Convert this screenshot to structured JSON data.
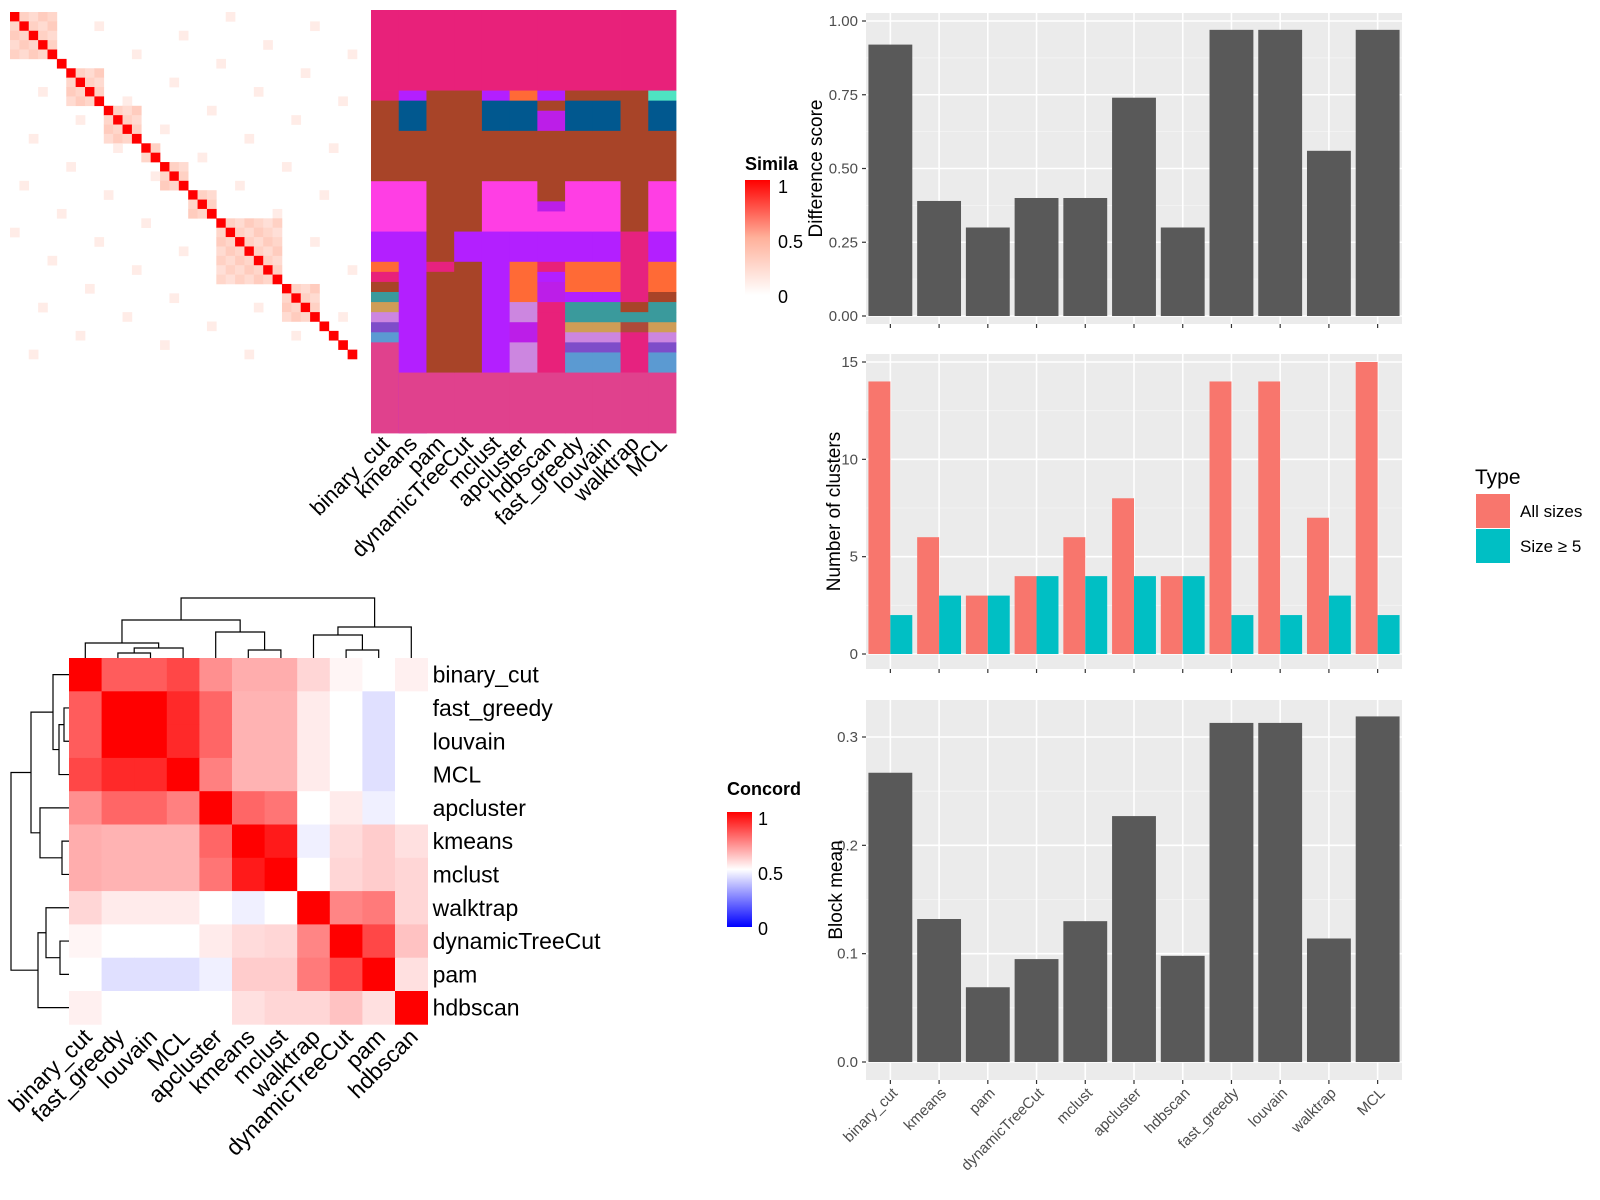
{
  "methods": [
    "binary_cut",
    "kmeans",
    "pam",
    "dynamicTreeCut",
    "mclust",
    "apcluster",
    "hdbscan",
    "fast_greedy",
    "louvain",
    "walktrap",
    "MCL"
  ],
  "legends": {
    "similarity": {
      "title": "Simila",
      "ticks": [
        "1",
        "0.5",
        "0"
      ]
    },
    "concordance": {
      "title": "Concord",
      "ticks": [
        "1",
        "0.5",
        "0"
      ]
    }
  },
  "chart_data": [
    {
      "id": "similarity_heatmap",
      "type": "heatmap",
      "n": 37,
      "diagonal": 1,
      "blocks": [
        [
          0,
          5
        ],
        [
          5,
          6
        ],
        [
          6,
          10
        ],
        [
          10,
          14
        ],
        [
          14,
          16
        ],
        [
          16,
          19
        ],
        [
          19,
          22
        ],
        [
          22,
          29
        ],
        [
          29,
          33
        ]
      ],
      "within_block": 0.2,
      "background": 0,
      "color_scale": {
        "0": "#ffffff",
        "0.5": "#ffb09a",
        "1": "#ff0000"
      }
    },
    {
      "id": "cluster_assignments",
      "type": "heatmap",
      "columns": [
        "binary_cut",
        "kmeans",
        "pam",
        "dynamicTreeCut",
        "mclust",
        "apcluster",
        "hdbscan",
        "fast_greedy",
        "louvain",
        "walktrap",
        "MCL"
      ],
      "colors": [
        "#e8217a",
        "#b31fff",
        "#a84428",
        "#e6227f",
        "#01588f",
        "#ff6a36",
        "#bc1ee8",
        "#ff3ee4",
        "#3a9a9c",
        "#cf9d56",
        "#cc86e0",
        "#7e4dc9",
        "#5b9ad2",
        "#e0418d",
        "#ae4a3a",
        "#bfa44e",
        "#4ee4c2",
        "#6a4a3a",
        "#a2a2a2",
        "#2ec8c8"
      ],
      "rows": 42
    },
    {
      "id": "concordance_heatmap",
      "type": "heatmap",
      "rows": [
        "binary_cut",
        "fast_greedy",
        "louvain",
        "MCL",
        "apcluster",
        "kmeans",
        "mclust",
        "walktrap",
        "dynamicTreeCut",
        "pam",
        "hdbscan"
      ],
      "columns": [
        "binary_cut",
        "fast_greedy",
        "louvain",
        "MCL",
        "apcluster",
        "kmeans",
        "mclust",
        "walktrap",
        "dynamicTreeCut",
        "pam",
        "hdbscan"
      ],
      "values": [
        [
          1.0,
          0.82,
          0.82,
          0.86,
          0.72,
          0.66,
          0.66,
          0.58,
          0.52,
          0.5,
          0.53
        ],
        [
          0.82,
          1.0,
          1.0,
          0.92,
          0.8,
          0.65,
          0.65,
          0.54,
          0.5,
          0.44,
          0.5
        ],
        [
          0.82,
          1.0,
          1.0,
          0.92,
          0.8,
          0.65,
          0.65,
          0.54,
          0.5,
          0.44,
          0.5
        ],
        [
          0.86,
          0.92,
          0.92,
          1.0,
          0.75,
          0.65,
          0.65,
          0.54,
          0.5,
          0.44,
          0.5
        ],
        [
          0.72,
          0.8,
          0.8,
          0.75,
          1.0,
          0.8,
          0.77,
          0.5,
          0.54,
          0.47,
          0.5
        ],
        [
          0.66,
          0.65,
          0.65,
          0.65,
          0.8,
          1.0,
          0.95,
          0.47,
          0.57,
          0.6,
          0.56
        ],
        [
          0.66,
          0.65,
          0.65,
          0.65,
          0.77,
          0.95,
          1.0,
          0.5,
          0.58,
          0.6,
          0.58
        ],
        [
          0.58,
          0.54,
          0.54,
          0.54,
          0.5,
          0.47,
          0.5,
          1.0,
          0.74,
          0.76,
          0.58
        ],
        [
          0.52,
          0.5,
          0.5,
          0.5,
          0.54,
          0.57,
          0.58,
          0.74,
          1.0,
          0.86,
          0.62
        ],
        [
          0.5,
          0.44,
          0.44,
          0.44,
          0.47,
          0.6,
          0.6,
          0.76,
          0.86,
          1.0,
          0.56
        ],
        [
          0.53,
          0.5,
          0.5,
          0.5,
          0.5,
          0.56,
          0.58,
          0.58,
          0.62,
          0.56,
          1.0
        ]
      ],
      "color_scale": {
        "0": "#0000ff",
        "0.5": "#ffffff",
        "1": "#ff0000"
      }
    },
    {
      "id": "difference_score",
      "type": "bar",
      "categories": [
        "binary_cut",
        "kmeans",
        "pam",
        "dynamicTreeCut",
        "mclust",
        "apcluster",
        "hdbscan",
        "fast_greedy",
        "louvain",
        "walktrap",
        "MCL"
      ],
      "values": [
        0.92,
        0.39,
        0.3,
        0.4,
        0.4,
        0.74,
        0.3,
        0.97,
        0.97,
        0.56,
        0.97
      ],
      "ylabel": "Difference score",
      "ylim": [
        0,
        1.0
      ],
      "yticks": [
        "0.00",
        "0.25",
        "0.50",
        "0.75",
        "1.00"
      ],
      "bar_color": "#595959"
    },
    {
      "id": "number_of_clusters",
      "type": "bar",
      "categories": [
        "binary_cut",
        "kmeans",
        "pam",
        "dynamicTreeCut",
        "mclust",
        "apcluster",
        "hdbscan",
        "fast_greedy",
        "louvain",
        "walktrap",
        "MCL"
      ],
      "series": [
        {
          "name": "All sizes",
          "values": [
            14,
            6,
            3,
            4,
            6,
            8,
            4,
            14,
            14,
            7,
            15
          ],
          "color": "#f8766d"
        },
        {
          "name": "Size ≥ 5",
          "values": [
            2,
            3,
            3,
            4,
            4,
            4,
            4,
            2,
            2,
            3,
            2
          ],
          "color": "#00bfc4"
        }
      ],
      "ylabel": "Number of clusters",
      "ylim": [
        0,
        15.5
      ],
      "yticks": [
        "0",
        "5",
        "10",
        "15"
      ],
      "legend": {
        "title": "Type",
        "position": "right"
      }
    },
    {
      "id": "block_mean",
      "type": "bar",
      "categories": [
        "binary_cut",
        "kmeans",
        "pam",
        "dynamicTreeCut",
        "mclust",
        "apcluster",
        "hdbscan",
        "fast_greedy",
        "louvain",
        "walktrap",
        "MCL"
      ],
      "values": [
        0.267,
        0.132,
        0.069,
        0.095,
        0.13,
        0.227,
        0.098,
        0.313,
        0.313,
        0.114,
        0.319
      ],
      "ylabel": "Block mean",
      "ylim": [
        0,
        0.33
      ],
      "yticks": [
        "0.0",
        "0.1",
        "0.2",
        "0.3"
      ],
      "bar_color": "#595959"
    }
  ]
}
